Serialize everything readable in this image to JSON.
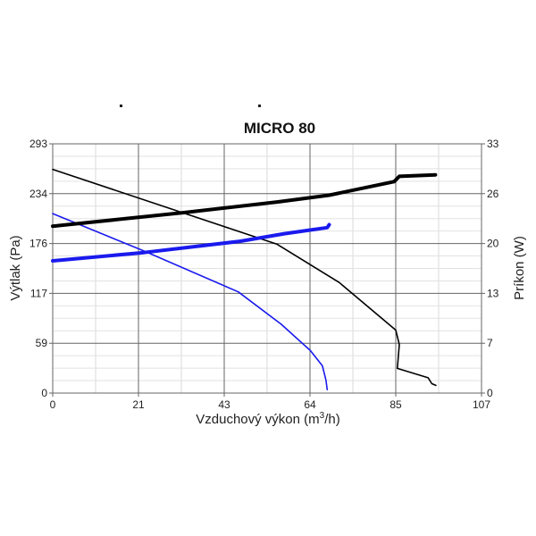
{
  "chart_data": {
    "type": "line",
    "title": "MICRO 80",
    "xlabel": "Vzduchový výkon (m",
    "xlabel_sup": "3",
    "xlabel_end": "/h)",
    "ylabel": "Výtlak (Pa)",
    "y2label": "Príkon (W)",
    "xlim": [
      0,
      107
    ],
    "ylim": [
      0,
      293
    ],
    "y2lim": [
      0,
      33
    ],
    "xticks": [
      "0",
      "21",
      "43",
      "64",
      "85",
      "107"
    ],
    "yticks": [
      "0",
      "59",
      "117",
      "176",
      "234",
      "293"
    ],
    "y2ticks": [
      "0",
      "7",
      "13",
      "20",
      "26",
      "33"
    ],
    "grid": true,
    "series": [
      {
        "name": "pressure-black",
        "axis": "left",
        "color": "#000000",
        "width": 1.6,
        "points": [
          [
            0,
            263
          ],
          [
            56,
            175
          ],
          [
            71.5,
            130
          ],
          [
            85.6,
            74
          ],
          [
            86.5,
            57
          ],
          [
            86,
            29
          ],
          [
            93.7,
            18
          ],
          [
            94.6,
            11
          ],
          [
            95.6,
            9
          ]
        ]
      },
      {
        "name": "pressure-blue",
        "axis": "left",
        "color": "#1a1aee",
        "width": 1.6,
        "points": [
          [
            0,
            211
          ],
          [
            22.8,
            167
          ],
          [
            46.3,
            119
          ],
          [
            57,
            81
          ],
          [
            64.3,
            50
          ],
          [
            67.3,
            32
          ],
          [
            68.2,
            15
          ],
          [
            68.5,
            4
          ]
        ]
      },
      {
        "name": "power-black",
        "axis": "right",
        "color": "#000000",
        "width": 4,
        "points": [
          [
            0,
            22.1
          ],
          [
            33,
            23.9
          ],
          [
            56,
            25.3
          ],
          [
            69,
            26.2
          ],
          [
            85.2,
            28.0
          ],
          [
            86.5,
            28.7
          ],
          [
            95.5,
            28.9
          ]
        ]
      },
      {
        "name": "power-blue",
        "axis": "right",
        "color": "#1a1aee",
        "width": 4,
        "points": [
          [
            0,
            17.5
          ],
          [
            22.8,
            18.6
          ],
          [
            46.7,
            20.1
          ],
          [
            57.8,
            21.1
          ],
          [
            68.5,
            21.9
          ],
          [
            69,
            22.3
          ]
        ]
      }
    ]
  }
}
